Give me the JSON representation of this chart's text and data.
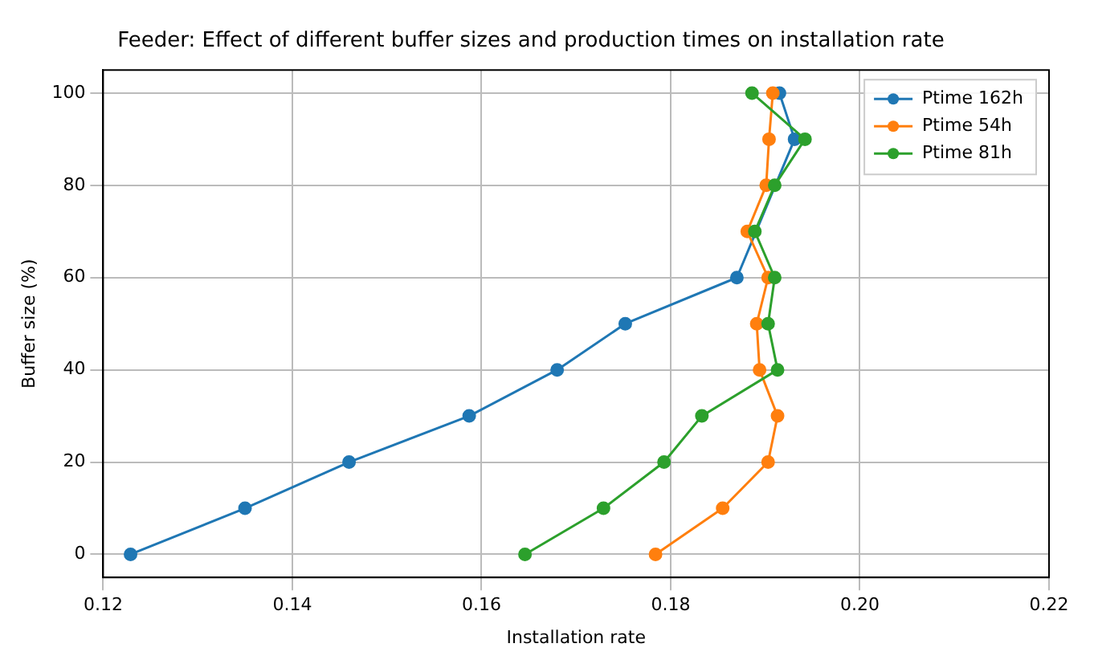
{
  "chart_data": {
    "type": "line",
    "title": "Feeder: Effect of different buffer sizes and production times on installation rate",
    "xlabel": "Installation rate",
    "ylabel": "Buffer size (%)",
    "xlim": [
      0.12,
      0.22
    ],
    "xticks": [
      {
        "value": 0.12,
        "label": "0.12"
      },
      {
        "value": 0.14,
        "label": "0.14"
      },
      {
        "value": 0.16,
        "label": "0.16"
      },
      {
        "value": 0.18,
        "label": "0.18"
      },
      {
        "value": 0.2,
        "label": "0.20"
      },
      {
        "value": 0.22,
        "label": "0.22"
      }
    ],
    "ylim": [
      -5,
      105
    ],
    "yticks": [
      0,
      20,
      40,
      60,
      80,
      100
    ],
    "grid": true,
    "legend": "top right",
    "marker": "circle",
    "series": [
      {
        "name": "Ptime 162h",
        "color": "#1f77b4",
        "x": [
          0.1229,
          0.135,
          0.146,
          0.1587,
          0.168,
          0.1752,
          0.187,
          0.1888,
          0.191,
          0.1931,
          0.1915
        ],
        "values": [
          0,
          10,
          20,
          30,
          40,
          50,
          60,
          null,
          null,
          90,
          100
        ]
      },
      {
        "name": "Ptime 54h",
        "color": "#ff7f0e",
        "x": [
          0.1784,
          0.1855,
          0.1903,
          0.1913,
          0.1894,
          0.1891,
          0.1903,
          0.1881,
          0.1901,
          0.1904,
          0.1908
        ],
        "values": [
          0,
          10,
          20,
          30,
          40,
          50,
          60,
          70,
          80,
          90,
          100
        ]
      },
      {
        "name": "Ptime 81h",
        "color": "#2ca02c",
        "x": [
          0.1646,
          0.1729,
          0.1793,
          0.1833,
          0.1913,
          0.1903,
          0.191,
          0.1889,
          0.191,
          0.1942,
          0.1886
        ],
        "values": [
          0,
          10,
          20,
          30,
          40,
          50,
          60,
          70,
          80,
          90,
          100
        ]
      }
    ]
  }
}
